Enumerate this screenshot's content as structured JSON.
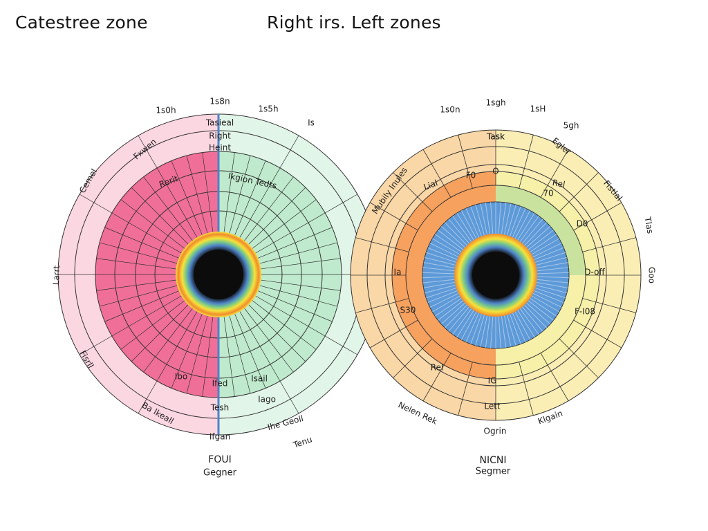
{
  "titles": {
    "left": "Catestree zone",
    "right": "Right irs. Left zones"
  },
  "colors": {
    "pink_outer": "#fbd7e2",
    "pink_mid": "#f8a7c0",
    "pink_inner": "#f06f98",
    "green_outer": "#e2f5e9",
    "green_mid": "#bfeacd",
    "orange_outer": "#f9d7a6",
    "orange_inner": "#f7a15e",
    "yellow_outer": "#fbeeb5",
    "yellow_inner": "#f6f0a8",
    "iris_blue": "#5e9ad8",
    "pupil": "#0c0c0c",
    "ring_yellow": "#f5e33a",
    "ring_orange": "#f28a2e",
    "ring_green": "#76c98b",
    "ring_blue": "#4f83c8",
    "line": "#333333"
  },
  "left_chart": {
    "top_numbers": [
      "1s0h",
      "1s8n",
      "1s5h",
      "Is"
    ],
    "bottom_labels": {
      "line1": "FOUI",
      "line2": "Gegner"
    },
    "outer_labels": [
      {
        "name": "outer-label",
        "text": "Cemel"
      },
      {
        "name": "outer-label",
        "text": "Larrt"
      },
      {
        "name": "outer-label",
        "text": "Fxwen"
      },
      {
        "name": "outer-label",
        "text": "Fisrll"
      },
      {
        "name": "outer-label",
        "text": "Tenu"
      },
      {
        "name": "outer-label",
        "text": "Ifgan"
      },
      {
        "name": "outer-label",
        "text": "Ba lkeall"
      },
      {
        "name": "outer-label",
        "text": "Ihe Geoll"
      },
      {
        "name": "outer-label",
        "text": "Tasieal"
      }
    ],
    "zone_labels": [
      {
        "text": "Right"
      },
      {
        "text": "Heint"
      },
      {
        "text": "Rerit"
      },
      {
        "text": "Ikgion Tedts"
      },
      {
        "text": "Tesh"
      },
      {
        "text": "Iago"
      },
      {
        "text": "Ifed"
      },
      {
        "text": "Isail"
      },
      {
        "text": "Ibo"
      }
    ]
  },
  "right_chart": {
    "top_numbers": [
      "1s0n",
      "1sgh",
      "1sH",
      "5gh"
    ],
    "bottom_labels": {
      "line1": "NICNI",
      "line2": "Segmer"
    },
    "outer_labels": [
      {
        "text": "Mubily Inules"
      },
      {
        "text": "Fistlal"
      },
      {
        "text": "Tlas"
      },
      {
        "text": "Goo"
      },
      {
        "text": "Nelen Rek"
      },
      {
        "text": "Klgain"
      },
      {
        "text": "Egler"
      },
      {
        "text": "Task"
      }
    ],
    "zone_labels": [
      {
        "text": "Task"
      },
      {
        "text": "F0"
      },
      {
        "text": "O"
      },
      {
        "text": "Lial"
      },
      {
        "text": "Rel"
      },
      {
        "text": "70"
      },
      {
        "text": "D-off"
      },
      {
        "text": "F-I08"
      },
      {
        "text": "S30"
      },
      {
        "text": "Lett"
      },
      {
        "text": "Ogrin"
      },
      {
        "text": "Rel"
      },
      {
        "text": "D0"
      },
      {
        "text": "Ia"
      },
      {
        "text": "IG"
      }
    ]
  }
}
